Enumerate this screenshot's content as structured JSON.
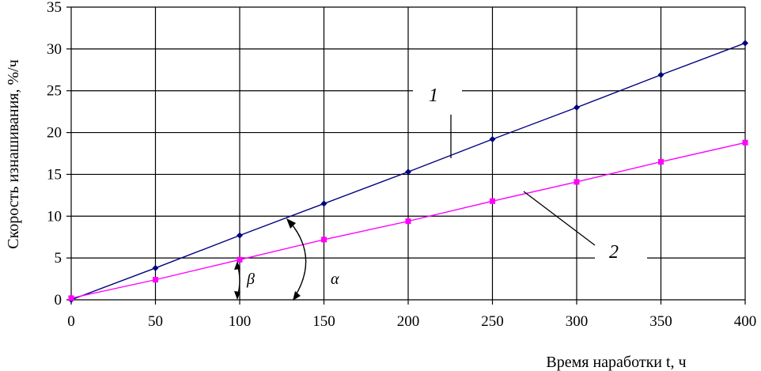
{
  "chart_data": {
    "type": "line",
    "title": "",
    "xlabel": "Время наработки t, ч",
    "ylabel": "Скорость изнашивания, %/ч",
    "xlim": [
      0,
      400
    ],
    "ylim": [
      0,
      35
    ],
    "x_ticks": [
      0,
      50,
      100,
      150,
      200,
      250,
      300,
      350,
      400
    ],
    "y_ticks": [
      0,
      5,
      10,
      15,
      20,
      25,
      30,
      35
    ],
    "grid": true,
    "legend": "none",
    "series": [
      {
        "label": "1",
        "color": "#000080",
        "marker": "diamond",
        "x": [
          0,
          50,
          100,
          150,
          200,
          250,
          300,
          350,
          400
        ],
        "y": [
          0,
          3.8,
          7.7,
          11.5,
          15.3,
          19.2,
          23.0,
          26.9,
          30.7
        ]
      },
      {
        "label": "2",
        "color": "#ff00ff",
        "marker": "square",
        "x": [
          0,
          50,
          100,
          150,
          200,
          250,
          300,
          350,
          400
        ],
        "y": [
          0.2,
          2.4,
          4.8,
          7.2,
          9.4,
          11.8,
          14.1,
          16.5,
          18.8
        ]
      }
    ],
    "annotations": {
      "angle_alpha": "α",
      "angle_beta": "β"
    }
  }
}
